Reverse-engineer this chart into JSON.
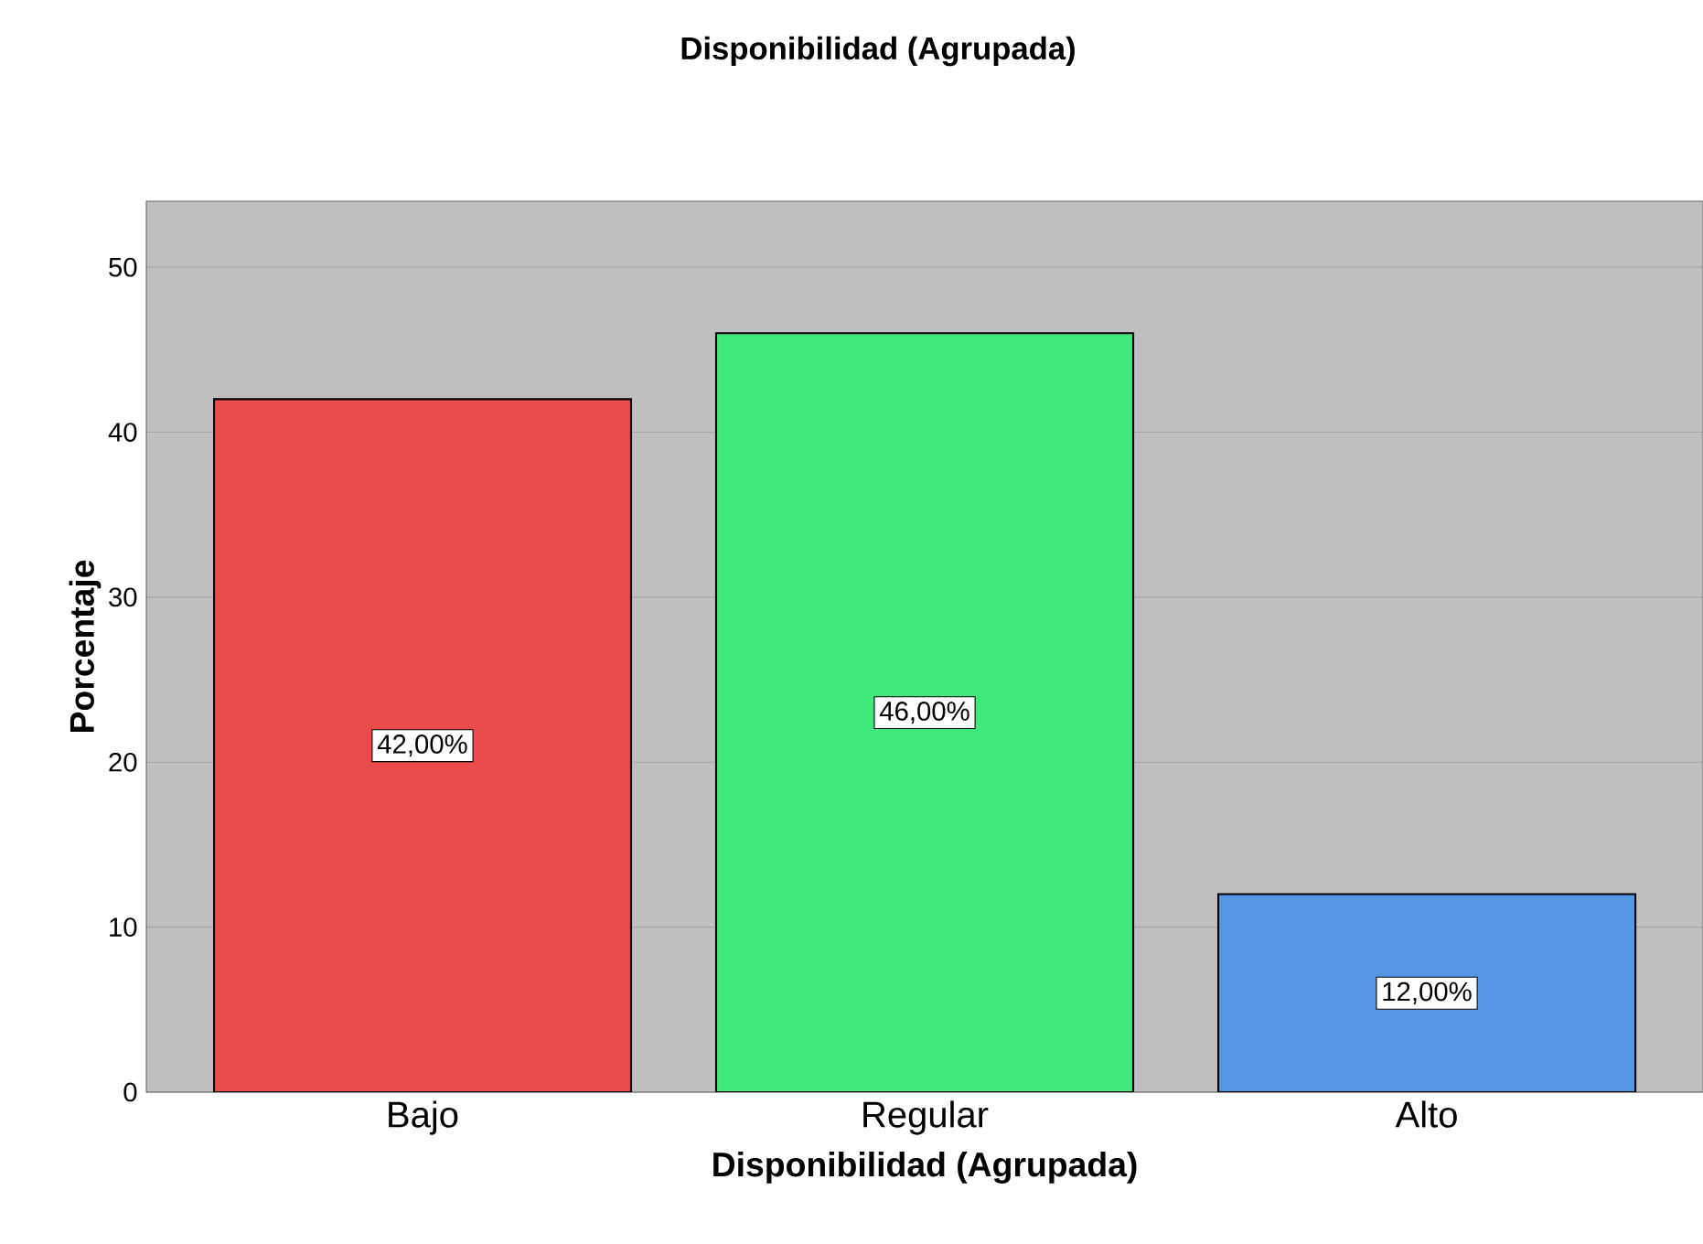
{
  "chart_data": {
    "type": "bar",
    "title": "Disponibilidad (Agrupada)",
    "xlabel": "Disponibilidad (Agrupada)",
    "ylabel": "Porcentaje",
    "categories": [
      "Bajo",
      "Regular",
      "Alto"
    ],
    "values": [
      42,
      46,
      12
    ],
    "colors": [
      "#ec4b4b",
      "#41e87c",
      "#5597e3"
    ],
    "value_labels": [
      "42,00%",
      "46,00%",
      "12,00%"
    ],
    "ylim": [
      0,
      54
    ],
    "yticks": [
      0,
      10,
      20,
      30,
      40,
      50
    ],
    "grid": "y"
  }
}
